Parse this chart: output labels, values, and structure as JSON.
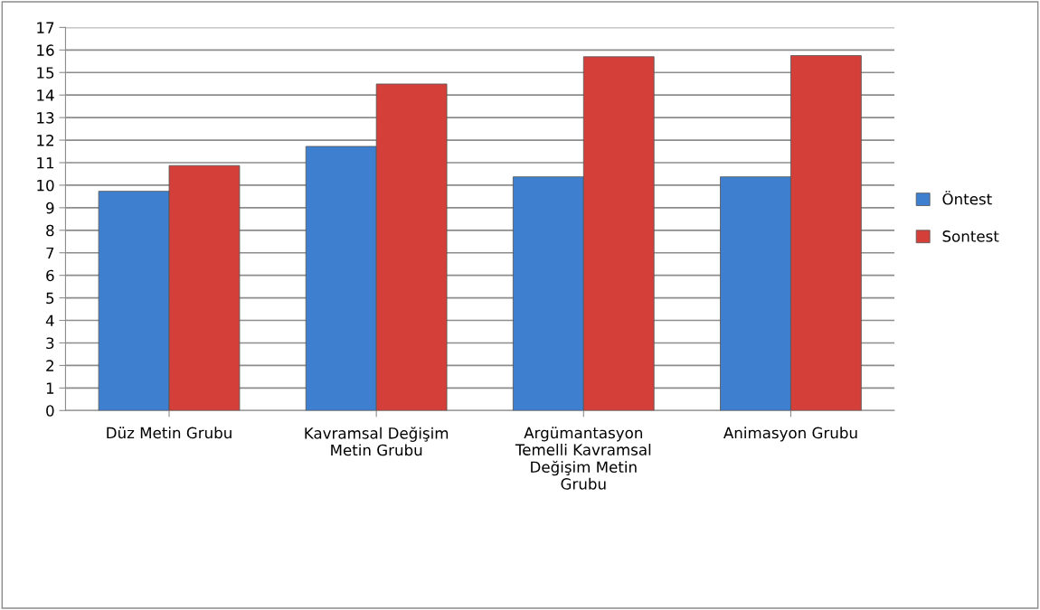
{
  "chart_data": {
    "type": "bar",
    "categories": [
      "Düz Metin Grubu",
      "Kavramsal Değişim\nMetin Grubu",
      "Argümantasyon\nTemelli Kavramsal\nDeğişim Metin\nGrubu",
      "Animasyon Grubu"
    ],
    "series": [
      {
        "name": "Öntest",
        "color": "#3f7fd0",
        "values": [
          9.73,
          11.72,
          10.37,
          10.37
        ]
      },
      {
        "name": "Sontest",
        "color": "#d43f3a",
        "values": [
          10.87,
          14.49,
          15.7,
          15.75
        ]
      }
    ],
    "ylim": [
      0,
      17
    ],
    "yticks": [
      0,
      1,
      2,
      3,
      4,
      5,
      6,
      7,
      8,
      9,
      10,
      11,
      12,
      13,
      14,
      15,
      16,
      17
    ],
    "grid": "y",
    "legend": "right"
  }
}
